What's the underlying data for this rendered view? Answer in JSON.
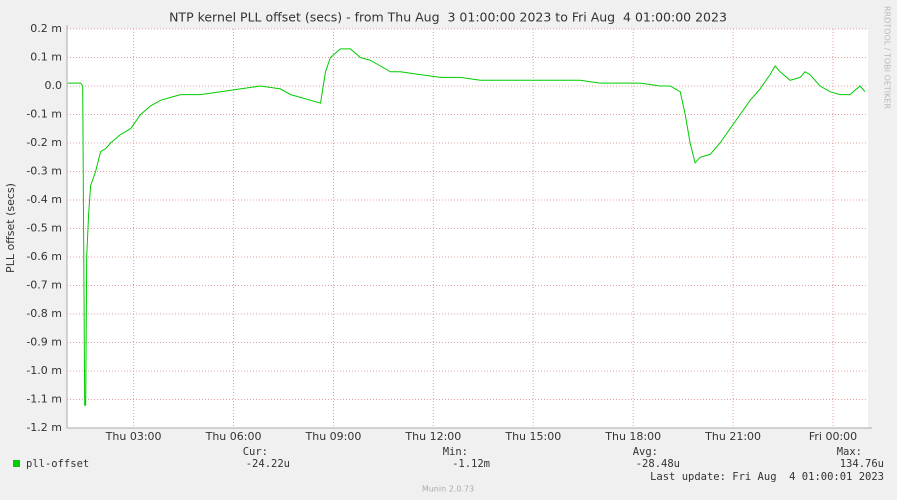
{
  "chart_data": {
    "type": "line",
    "title": "NTP kernel PLL offset (secs) - from Thu Aug  3 01:00:00 2023 to Fri Aug  4 01:00:00 2023",
    "y_label": "PLL offset (secs)",
    "side_label": "RRDTOOL / TOBI OETIKER",
    "x": [
      1.02,
      1.41,
      1.47,
      1.53,
      1.56,
      1.59,
      1.65,
      1.71,
      1.86,
      2.01,
      2.16,
      2.31,
      2.61,
      2.91,
      3.21,
      3.51,
      3.81,
      4.11,
      4.41,
      5.01,
      5.61,
      6.21,
      6.81,
      7.41,
      7.71,
      8.01,
      8.31,
      8.61,
      8.76,
      8.91,
      9.21,
      9.51,
      9.81,
      10.11,
      10.41,
      10.71,
      11.01,
      11.61,
      12.21,
      12.81,
      13.41,
      14.01,
      14.61,
      15.21,
      15.81,
      16.41,
      17.01,
      17.61,
      18.21,
      18.81,
      19.11,
      19.41,
      19.56,
      19.71,
      19.86,
      20.01,
      20.31,
      20.61,
      20.91,
      21.21,
      21.51,
      21.81,
      22.11,
      22.26,
      22.41,
      22.71,
      23.01,
      23.16,
      23.31,
      23.61,
      23.91,
      24.21,
      24.51,
      24.81,
      24.96
    ],
    "series": [
      {
        "name": "pll-offset",
        "color": "#00cc00",
        "values": [
          0.01,
          0.01,
          0.0,
          -1.12,
          -1.12,
          -0.6,
          -0.45,
          -0.35,
          -0.3,
          -0.23,
          -0.22,
          -0.2,
          -0.17,
          -0.15,
          -0.1,
          -0.07,
          -0.05,
          -0.04,
          -0.03,
          -0.03,
          -0.02,
          -0.01,
          0.0,
          -0.01,
          -0.03,
          -0.04,
          -0.05,
          -0.06,
          0.05,
          0.1,
          0.13,
          0.13,
          0.1,
          0.09,
          0.07,
          0.05,
          0.05,
          0.04,
          0.03,
          0.03,
          0.02,
          0.02,
          0.02,
          0.02,
          0.02,
          0.02,
          0.01,
          0.01,
          0.01,
          0.0,
          0.0,
          -0.02,
          -0.1,
          -0.2,
          -0.27,
          -0.25,
          -0.24,
          -0.2,
          -0.15,
          -0.1,
          -0.05,
          -0.01,
          0.04,
          0.07,
          0.05,
          0.02,
          0.03,
          0.05,
          0.04,
          0.0,
          -0.02,
          -0.03,
          -0.03,
          0.0,
          -0.02
        ]
      }
    ],
    "xlim": [
      1,
      25.05
    ],
    "xticks": [
      {
        "value": 3,
        "label": "Thu 03:00"
      },
      {
        "value": 6,
        "label": "Thu 06:00"
      },
      {
        "value": 9,
        "label": "Thu 09:00"
      },
      {
        "value": 12,
        "label": "Thu 12:00"
      },
      {
        "value": 15,
        "label": "Thu 15:00"
      },
      {
        "value": 18,
        "label": "Thu 18:00"
      },
      {
        "value": 21,
        "label": "Thu 21:00"
      },
      {
        "value": 24,
        "label": "Fri 00:00"
      }
    ],
    "ylim": [
      -1.2,
      0.2
    ],
    "yticks": [
      {
        "value": 0.2,
        "label": "0.2 m"
      },
      {
        "value": 0.1,
        "label": "0.1 m"
      },
      {
        "value": 0,
        "label": "0.0"
      },
      {
        "value": -0.1,
        "label": "-0.1 m"
      },
      {
        "value": -0.2,
        "label": "-0.2 m"
      },
      {
        "value": -0.3,
        "label": "-0.3 m"
      },
      {
        "value": -0.4,
        "label": "-0.4 m"
      },
      {
        "value": -0.5,
        "label": "-0.5 m"
      },
      {
        "value": -0.6,
        "label": "-0.6 m"
      },
      {
        "value": -0.7,
        "label": "-0.7 m"
      },
      {
        "value": -0.8,
        "label": "-0.8 m"
      },
      {
        "value": -0.9,
        "label": "-0.9 m"
      },
      {
        "value": -1.0,
        "label": "-1.0 m"
      },
      {
        "value": -1.1,
        "label": "-1.1 m"
      },
      {
        "value": -1.2,
        "label": "-1.2 m"
      }
    ],
    "grid": true,
    "stats": {
      "labels": [
        "Cur:",
        "Min:",
        "Avg:",
        "Max:"
      ],
      "values": [
        "-24.22u",
        "-1.12m",
        "-28.48u",
        "134.76u"
      ]
    },
    "last_update": "Last update: Fri Aug  4 01:00:01 2023",
    "footer": "Munin 2.0.73"
  }
}
